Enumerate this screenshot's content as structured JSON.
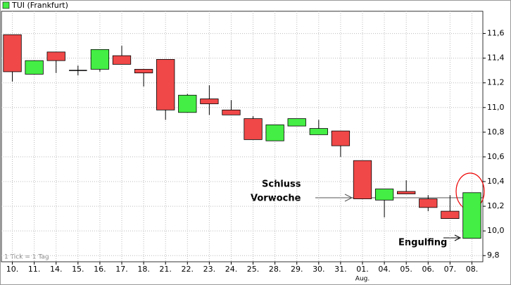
{
  "chart_data": {
    "type": "candlestick",
    "title": "TUI (Frankfurt)",
    "categories": [
      "10.",
      "11.",
      "14.",
      "15.",
      "16.",
      "17.",
      "18.",
      "21.",
      "22.",
      "23.",
      "24.",
      "25.",
      "28.",
      "29.",
      "30.",
      "31.",
      "01.",
      "04.",
      "05.",
      "06.",
      "07.",
      "08."
    ],
    "month_label": "Aug.",
    "open": [
      11.59,
      11.27,
      11.45,
      11.3,
      11.31,
      11.42,
      11.31,
      11.39,
      10.96,
      11.07,
      10.98,
      10.91,
      10.73,
      10.85,
      10.78,
      10.81,
      10.57,
      10.25,
      10.32,
      10.26,
      10.16,
      9.94
    ],
    "high": [
      11.59,
      11.38,
      11.45,
      11.34,
      11.47,
      11.5,
      11.31,
      11.39,
      11.11,
      11.18,
      11.06,
      10.93,
      10.86,
      10.91,
      10.9,
      10.81,
      10.57,
      10.34,
      10.41,
      10.29,
      10.29,
      10.31
    ],
    "low": [
      11.21,
      11.27,
      11.28,
      11.26,
      11.29,
      11.35,
      11.17,
      10.9,
      10.96,
      10.94,
      10.94,
      10.74,
      10.73,
      10.85,
      10.78,
      10.6,
      10.26,
      10.11,
      10.3,
      10.16,
      10.1,
      9.94
    ],
    "close": [
      11.29,
      11.38,
      11.38,
      11.3,
      11.47,
      11.35,
      11.28,
      10.98,
      11.1,
      11.03,
      10.94,
      10.74,
      10.86,
      10.91,
      10.83,
      10.69,
      10.26,
      10.34,
      10.3,
      10.19,
      10.1,
      10.31
    ],
    "up_color": "#44ee44",
    "down_color": "#f04848",
    "ylim": [
      9.75,
      11.78
    ],
    "yticks": [
      {
        "value": 9.8,
        "label": "9,8"
      },
      {
        "value": 10.0,
        "label": "10,0"
      },
      {
        "value": 10.2,
        "label": "10,2"
      },
      {
        "value": 10.4,
        "label": "10,4"
      },
      {
        "value": 10.6,
        "label": "10,6"
      },
      {
        "value": 10.8,
        "label": "10,8"
      },
      {
        "value": 11.0,
        "label": "11,0"
      },
      {
        "value": 11.2,
        "label": "11,2"
      },
      {
        "value": 11.4,
        "label": "11,4"
      },
      {
        "value": 11.6,
        "label": "11,6"
      }
    ],
    "grid": true,
    "annotations": [
      "Schluss",
      "Vorwoche",
      "Engulfing"
    ],
    "note": "1 Tick = 1 Tag"
  }
}
